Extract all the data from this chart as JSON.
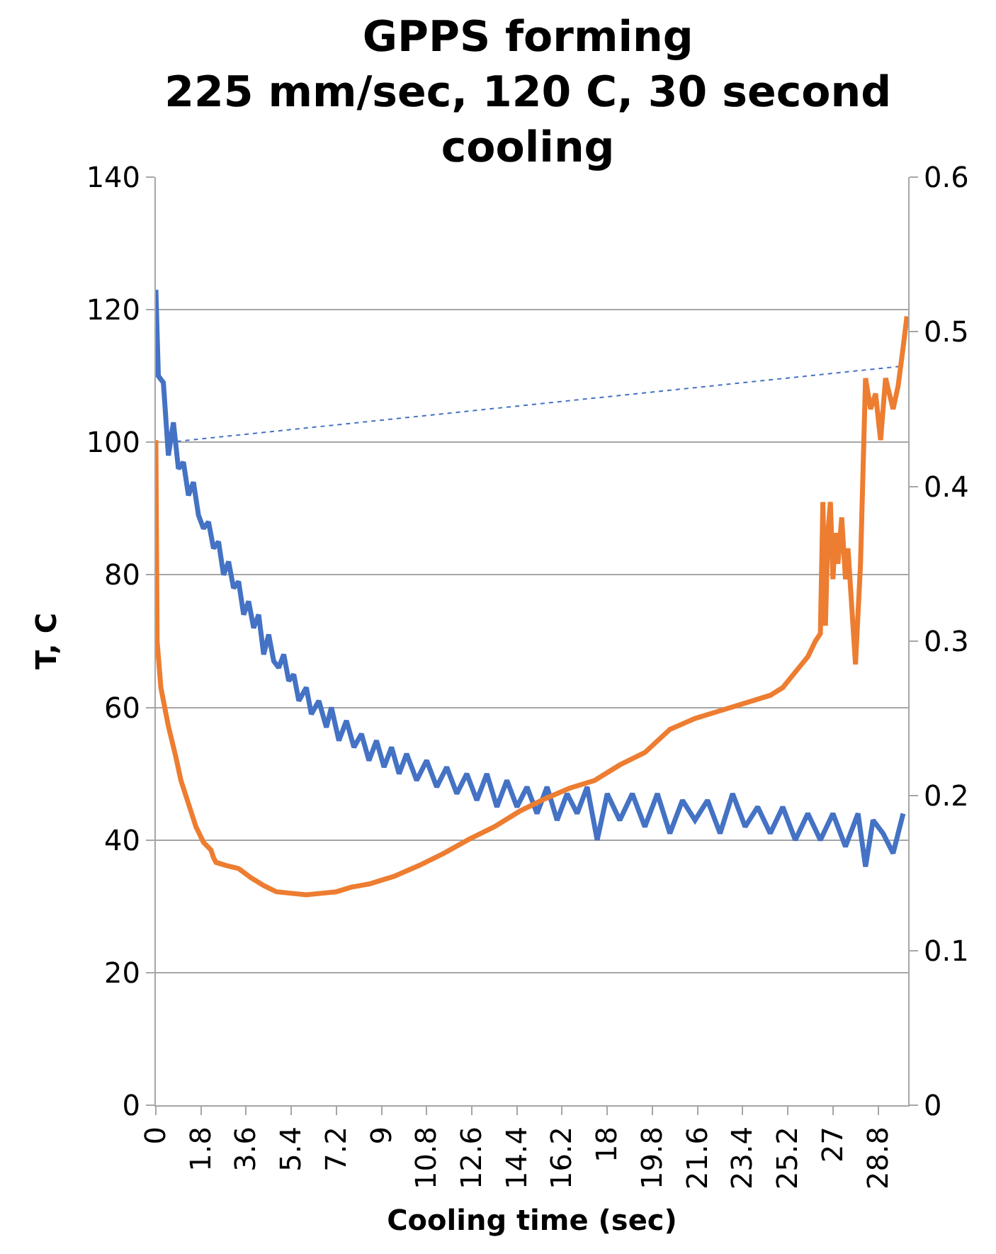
{
  "chart_data": {
    "type": "line",
    "title": "GPPS forming\n225 mm/sec, 120 C, 30 second\ncooling",
    "xlabel": "Cooling time (sec)",
    "ylabel": "T, C",
    "xlim": [
      0,
      30
    ],
    "xticks": [
      {
        "value": 0,
        "label": "0"
      },
      1.8,
      3.6,
      5.4,
      7.2,
      {
        "value": 9,
        "label": "9"
      },
      10.8,
      12.6,
      14.4,
      16.2,
      {
        "value": 18,
        "label": "18"
      },
      19.8,
      21.6,
      23.4,
      25.2,
      {
        "value": 27,
        "label": "27"
      },
      28.8
    ],
    "ylim": [
      0,
      140
    ],
    "yticks": [
      0,
      20,
      40,
      60,
      80,
      100,
      120,
      140
    ],
    "y2lim": [
      0,
      0.6
    ],
    "y2ticks": [
      0,
      0.1,
      0.2,
      0.3,
      0.4,
      0.5,
      0.6
    ],
    "grid": "y",
    "marker": "none",
    "series": [
      {
        "color": "#4472c4",
        "x": [
          0,
          0.1,
          0.3,
          0.5,
          0.7,
          0.9,
          1.1,
          1.3,
          1.5,
          1.7,
          1.9,
          2.1,
          2.3,
          2.5,
          2.7,
          2.9,
          3.1,
          3.3,
          3.5,
          3.7,
          3.9,
          4.1,
          4.3,
          4.5,
          4.7,
          4.9,
          5.1,
          5.3,
          5.5,
          5.7,
          6.0,
          6.2,
          6.5,
          6.8,
          7.0,
          7.3,
          7.6,
          7.9,
          8.2,
          8.5,
          8.8,
          9.1,
          9.4,
          9.7,
          10,
          10.4,
          10.8,
          11.2,
          11.6,
          12,
          12.4,
          12.8,
          13.2,
          13.6,
          14,
          14.4,
          14.8,
          15.2,
          15.6,
          16,
          16.4,
          16.8,
          17.2,
          17.6,
          18,
          18.5,
          19,
          19.5,
          20,
          20.5,
          21,
          21.5,
          22,
          22.5,
          23,
          23.5,
          24,
          24.5,
          25,
          25.5,
          26,
          26.5,
          27,
          27.5,
          28,
          28.3,
          28.6,
          29,
          29.4,
          29.8
        ],
        "values": [
          123,
          110,
          109,
          98,
          103,
          96,
          97,
          92,
          94,
          89,
          87,
          88,
          84,
          85,
          80,
          82,
          78,
          79,
          74,
          76,
          72,
          74,
          68,
          71,
          67,
          66,
          68,
          64,
          65,
          61,
          63,
          59,
          61,
          57,
          60,
          55,
          58,
          54,
          56,
          52,
          55,
          51,
          54,
          50,
          53,
          49,
          52,
          48,
          51,
          47,
          50,
          46,
          50,
          45,
          49,
          45,
          48,
          44,
          48,
          43,
          47,
          44,
          48,
          40,
          47,
          43,
          47,
          42,
          47,
          41,
          46,
          43,
          46,
          41,
          47,
          42,
          45,
          41,
          45,
          40,
          44,
          40,
          44,
          39,
          44,
          36,
          43,
          41,
          38,
          44
        ]
      },
      {
        "color": "#ed7d31",
        "axis": "y2",
        "x": [
          0,
          0.05,
          0.2,
          0.5,
          0.8,
          1.0,
          1.3,
          1.6,
          1.9,
          2.2,
          2.3,
          2.4,
          2.8,
          3.3,
          3.8,
          4.3,
          4.8,
          5.4,
          6,
          6.6,
          7.2,
          7.8,
          8.5,
          9.5,
          10.5,
          11.5,
          12.5,
          13.5,
          14.5,
          15.5,
          16.5,
          17.5,
          18.5,
          19.5,
          20.5,
          21.5,
          22.5,
          23.5,
          24.5,
          25,
          25.5,
          26,
          26.3,
          26.5,
          26.6,
          26.7,
          26.8,
          26.9,
          27.0,
          27.1,
          27.2,
          27.35,
          27.5,
          27.6,
          27.9,
          28.1,
          28.3,
          28.5,
          28.7,
          28.9,
          29.1,
          29.4,
          29.6,
          29.8,
          29.95
        ],
        "values": [
          0.43,
          0.3,
          0.27,
          0.245,
          0.225,
          0.21,
          0.195,
          0.18,
          0.17,
          0.165,
          0.16,
          0.157,
          0.155,
          0.153,
          0.147,
          0.142,
          0.138,
          0.137,
          0.136,
          0.137,
          0.138,
          0.141,
          0.143,
          0.148,
          0.155,
          0.163,
          0.172,
          0.18,
          0.19,
          0.198,
          0.205,
          0.21,
          0.22,
          0.228,
          0.243,
          0.25,
          0.255,
          0.26,
          0.265,
          0.27,
          0.28,
          0.29,
          0.3,
          0.305,
          0.39,
          0.31,
          0.37,
          0.39,
          0.34,
          0.37,
          0.35,
          0.38,
          0.34,
          0.36,
          0.285,
          0.35,
          0.47,
          0.45,
          0.46,
          0.43,
          0.47,
          0.45,
          0.465,
          0.49,
          0.51
        ]
      },
      {
        "type": "line",
        "color": "#4472c4",
        "line_style": "dotted",
        "x": [
          0.5,
          29.8
        ],
        "values": [
          100,
          111.5
        ]
      }
    ]
  }
}
